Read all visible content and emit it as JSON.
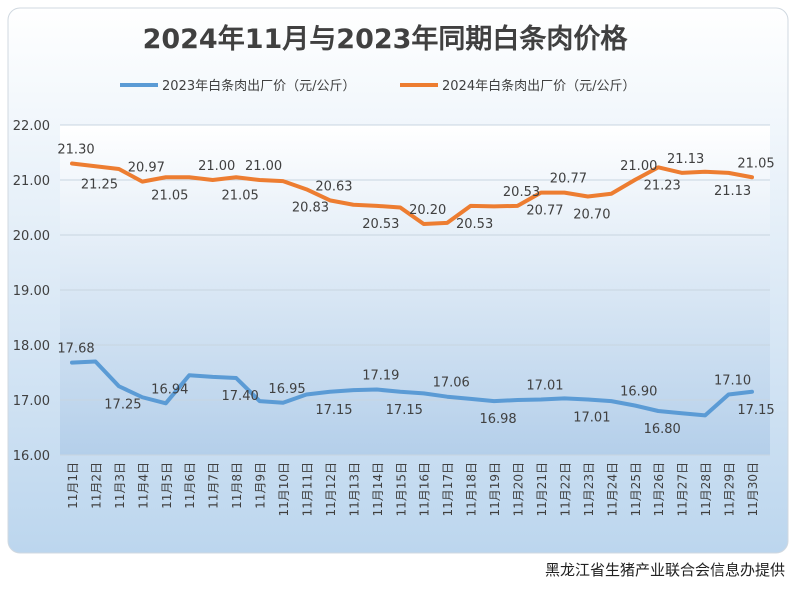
{
  "chart_data": {
    "type": "line",
    "title": "2024年11月与2023年同期白条肉价格",
    "source": "黑龙江省生猪产业联合会信息办提供",
    "categories": [
      "11月1日",
      "11月2日",
      "11月3日",
      "11月4日",
      "11月5日",
      "11月6日",
      "11月7日",
      "11月8日",
      "11月9日",
      "11月10日",
      "11月11日",
      "11月12日",
      "11月13日",
      "11月14日",
      "11月15日",
      "11月16日",
      "11月17日",
      "11月18日",
      "11月19日",
      "11月20日",
      "11月21日",
      "11月22日",
      "11月23日",
      "11月24日",
      "11月25日",
      "11月26日",
      "11月27日",
      "11月28日",
      "11月29日",
      "11月30日"
    ],
    "series": [
      {
        "name": "2023年白条肉出厂价（元/公斤）",
        "color": "#5b9bd5",
        "values": [
          17.68,
          17.7,
          17.25,
          17.05,
          16.94,
          17.45,
          17.42,
          17.4,
          16.98,
          16.95,
          17.1,
          17.15,
          17.18,
          17.19,
          17.15,
          17.12,
          17.06,
          17.02,
          16.98,
          17.0,
          17.01,
          17.03,
          17.01,
          16.98,
          16.9,
          16.8,
          16.76,
          16.72,
          17.1,
          17.15
        ],
        "value_labels": [
          "17.68",
          null,
          "17.25",
          null,
          "16.94",
          null,
          null,
          "17.40",
          null,
          "16.95",
          null,
          "17.15",
          null,
          "17.19",
          "17.15",
          null,
          "17.06",
          null,
          "16.98",
          null,
          "17.01",
          null,
          "17.01",
          null,
          "16.90",
          "16.80",
          null,
          null,
          "17.10",
          "17.15"
        ]
      },
      {
        "name": "2024年白条肉出厂价（元/公斤）",
        "color": "#ed7d31",
        "values": [
          21.3,
          21.25,
          21.2,
          20.97,
          21.05,
          21.05,
          21.0,
          21.05,
          21.0,
          20.98,
          20.83,
          20.63,
          20.55,
          20.53,
          20.5,
          20.2,
          20.22,
          20.53,
          20.52,
          20.53,
          20.77,
          20.77,
          20.7,
          20.75,
          21.0,
          21.23,
          21.13,
          21.15,
          21.13,
          21.05
        ],
        "value_labels": [
          "21.30",
          "21.25",
          null,
          "20.97",
          "21.05",
          null,
          "21.00",
          "21.05",
          "21.00",
          null,
          "20.83",
          "20.63",
          null,
          "20.53",
          null,
          "20.20",
          null,
          "20.53",
          null,
          "20.53",
          "20.77",
          "20.77",
          "20.70",
          null,
          "21.00",
          "21.23",
          "21.13",
          null,
          "21.13",
          "21.05"
        ]
      }
    ],
    "ylim": [
      16,
      22
    ],
    "yticks": [
      {
        "value": 16,
        "label": "16.00"
      },
      {
        "value": 17,
        "label": "17.00"
      },
      {
        "value": 18,
        "label": "18.00"
      },
      {
        "value": 19,
        "label": "19.00"
      },
      {
        "value": 20,
        "label": "20.00"
      },
      {
        "value": 21,
        "label": "21.00"
      },
      {
        "value": 22,
        "label": "22.00"
      }
    ],
    "legend": "top"
  }
}
